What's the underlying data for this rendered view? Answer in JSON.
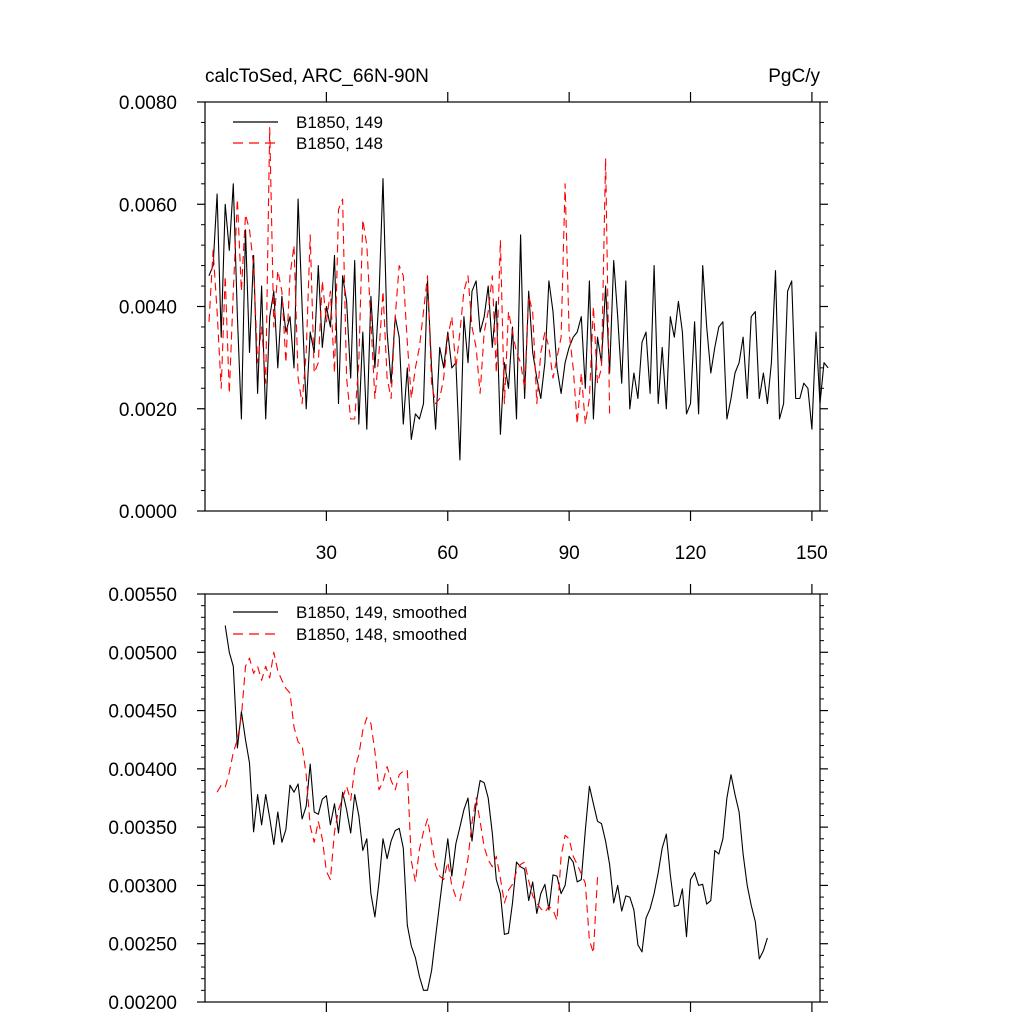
{
  "chart_data": [
    {
      "type": "line",
      "title": "calcToSed, ARC_66N-90N",
      "units": "PgC/y",
      "xlim": [
        0,
        152
      ],
      "ylim": [
        0.0,
        0.008
      ],
      "yticks": [
        "0.0000",
        "0.0020",
        "0.0040",
        "0.0060",
        "0.0080"
      ],
      "ytick_values": [
        0.0,
        0.002,
        0.004,
        0.006,
        0.008
      ],
      "xticks": [
        "30",
        "60",
        "90",
        "120",
        "150"
      ],
      "xtick_values": [
        30,
        60,
        90,
        120,
        150
      ],
      "legend_position": "top-left",
      "series": [
        {
          "name": "B1850, 149",
          "color": "#000000",
          "style": "solid",
          "x_start": 1,
          "values": [
            0.0046,
            0.0048,
            0.0062,
            0.0034,
            0.006,
            0.0051,
            0.0064,
            0.0038,
            0.0018,
            0.0055,
            0.0031,
            0.005,
            0.0023,
            0.0044,
            0.0018,
            0.0038,
            0.0043,
            0.0028,
            0.0042,
            0.0035,
            0.0038,
            0.0028,
            0.0061,
            0.004,
            0.002,
            0.0035,
            0.0031,
            0.0048,
            0.0032,
            0.004,
            0.0036,
            0.005,
            0.0021,
            0.0046,
            0.0041,
            0.0026,
            0.0049,
            0.0017,
            0.0035,
            0.0016,
            0.0042,
            0.0028,
            0.0042,
            0.0065,
            0.0035,
            0.0025,
            0.0038,
            0.0034,
            0.0017,
            0.0028,
            0.0014,
            0.0019,
            0.0018,
            0.0021,
            0.0045,
            0.0028,
            0.0016,
            0.0032,
            0.0028,
            0.0035,
            0.0028,
            0.0029,
            0.001,
            0.0038,
            0.0029,
            0.0043,
            0.0045,
            0.0035,
            0.0038,
            0.0044,
            0.0032,
            0.0041,
            0.0015,
            0.0029,
            0.0024,
            0.0036,
            0.0018,
            0.0054,
            0.0022,
            0.0043,
            0.0031,
            0.0026,
            0.0022,
            0.0029,
            0.0045,
            0.0039,
            0.0028,
            0.0023,
            0.0029,
            0.0032,
            0.0034,
            0.0035,
            0.0038,
            0.0024,
            0.0045,
            0.0018,
            0.0034,
            0.0029,
            0.0044,
            0.0027,
            0.0049,
            0.0038,
            0.0025,
            0.0045,
            0.002,
            0.0027,
            0.0022,
            0.0033,
            0.0035,
            0.0023,
            0.0048,
            0.0021,
            0.0032,
            0.002,
            0.0038,
            0.0034,
            0.0041,
            0.0035,
            0.0019,
            0.0021,
            0.0037,
            0.0019,
            0.0048,
            0.0036,
            0.0027,
            0.0032,
            0.0036,
            0.0037,
            0.0018,
            0.0022,
            0.0027,
            0.0029,
            0.0034,
            0.0022,
            0.0038,
            0.0039,
            0.0022,
            0.0027,
            0.0021,
            0.0029,
            0.0047,
            0.0018,
            0.0021,
            0.0043,
            0.0045,
            0.0022,
            0.0022,
            0.0025,
            0.0024,
            0.0016,
            0.0035,
            0.0021,
            0.0029,
            0.0028
          ]
        },
        {
          "name": "B1850, 148",
          "color": "#ff0000",
          "style": "dashed",
          "x_start": 1,
          "values": [
            0.0037,
            0.0051,
            0.0039,
            0.0024,
            0.0046,
            0.0023,
            0.0043,
            0.0061,
            0.0043,
            0.0058,
            0.0055,
            0.0048,
            0.0029,
            0.0036,
            0.0025,
            0.0075,
            0.0036,
            0.0047,
            0.0043,
            0.0029,
            0.0046,
            0.0052,
            0.0026,
            0.0021,
            0.0031,
            0.0054,
            0.0027,
            0.0029,
            0.0045,
            0.0037,
            0.0043,
            0.0027,
            0.0059,
            0.0061,
            0.0026,
            0.0018,
            0.0018,
            0.0029,
            0.0057,
            0.0052,
            0.0037,
            0.0022,
            0.0031,
            0.0043,
            0.0026,
            0.0022,
            0.0038,
            0.0048,
            0.0046,
            0.0033,
            0.0022,
            0.0028,
            0.0032,
            0.0039,
            0.0046,
            0.0025,
            0.0021,
            0.0022,
            0.0026,
            0.0034,
            0.0038,
            0.0028,
            0.0035,
            0.0043,
            0.0046,
            0.0036,
            0.0032,
            0.0023,
            0.0035,
            0.0039,
            0.0046,
            0.0027,
            0.0053,
            0.0021,
            0.0039,
            0.0035,
            0.0031,
            0.0029,
            0.0024,
            0.0042,
            0.0039,
            0.0021,
            0.0031,
            0.0035,
            0.0032,
            0.0026,
            0.003,
            0.0034,
            0.0064,
            0.0035,
            0.0028,
            0.0017,
            0.0027,
            0.0017,
            0.0022,
            0.004,
            0.0025,
            0.0028,
            0.0069,
            0.0019
          ]
        }
      ]
    },
    {
      "type": "line",
      "title": "",
      "xlim": [
        0,
        152
      ],
      "ylim": [
        0.002,
        0.0055
      ],
      "yticks": [
        "0.00200",
        "0.00250",
        "0.00300",
        "0.00350",
        "0.00400",
        "0.00450",
        "0.00500",
        "0.00550"
      ],
      "ytick_values": [
        0.002,
        0.0025,
        0.003,
        0.0035,
        0.004,
        0.0045,
        0.005,
        0.0055
      ],
      "xtick_values": [
        30,
        60,
        90,
        120,
        150
      ],
      "legend_position": "top-left",
      "series": [
        {
          "name": "B1850, 149, smoothed",
          "color": "#000000",
          "style": "solid",
          "x_start": 5,
          "values": [
            0.00523,
            0.005,
            0.00488,
            0.00418,
            0.00449,
            0.00425,
            0.00405,
            0.00346,
            0.00378,
            0.00352,
            0.00378,
            0.00358,
            0.00335,
            0.00363,
            0.00337,
            0.00348,
            0.00386,
            0.0038,
            0.00387,
            0.00357,
            0.00368,
            0.00404,
            0.00363,
            0.00361,
            0.00374,
            0.00377,
            0.00352,
            0.0037,
            0.00345,
            0.0038,
            0.00365,
            0.00345,
            0.00378,
            0.0036,
            0.0033,
            0.0034,
            0.00293,
            0.00273,
            0.00303,
            0.0034,
            0.00323,
            0.00338,
            0.00347,
            0.00349,
            0.00332,
            0.00266,
            0.00248,
            0.00238,
            0.00222,
            0.0021,
            0.0021,
            0.00227,
            0.00256,
            0.00285,
            0.00313,
            0.0034,
            0.00308,
            0.00336,
            0.0035,
            0.00365,
            0.00375,
            0.00338,
            0.0037,
            0.0039,
            0.00388,
            0.00375,
            0.00345,
            0.00305,
            0.00293,
            0.00258,
            0.00259,
            0.00285,
            0.0032,
            0.00316,
            0.00314,
            0.00287,
            0.00303,
            0.00276,
            0.00293,
            0.00301,
            0.00279,
            0.00309,
            0.00308,
            0.00293,
            0.003,
            0.00325,
            0.0032,
            0.00303,
            0.00305,
            0.00347,
            0.00385,
            0.0037,
            0.00355,
            0.00353,
            0.00338,
            0.00318,
            0.00285,
            0.003,
            0.00278,
            0.00291,
            0.0029,
            0.00279,
            0.00249,
            0.00243,
            0.00272,
            0.0028,
            0.00293,
            0.00311,
            0.00332,
            0.00344,
            0.00309,
            0.00282,
            0.00283,
            0.00297,
            0.00256,
            0.00305,
            0.00311,
            0.003,
            0.00301,
            0.00284,
            0.00287,
            0.0033,
            0.00327,
            0.0034,
            0.00375,
            0.00395,
            0.00378,
            0.00363,
            0.00327,
            0.003,
            0.00283,
            0.00269,
            0.00237,
            0.00244,
            0.00255
          ]
        },
        {
          "name": "B1850, 148, smoothed",
          "color": "#ff0000",
          "style": "dashed",
          "x_start": 3,
          "values": [
            0.0038,
            0.00386,
            0.00384,
            0.00397,
            0.00414,
            0.00425,
            0.00445,
            0.00488,
            0.00495,
            0.00482,
            0.00488,
            0.00476,
            0.00488,
            0.00478,
            0.005,
            0.00484,
            0.00476,
            0.00469,
            0.00465,
            0.00436,
            0.00423,
            0.0042,
            0.00395,
            0.00351,
            0.00337,
            0.00355,
            0.0034,
            0.00312,
            0.00305,
            0.00346,
            0.00365,
            0.00375,
            0.00385,
            0.00373,
            0.004,
            0.00412,
            0.00433,
            0.00444,
            0.00439,
            0.00415,
            0.00382,
            0.00389,
            0.00402,
            0.0039,
            0.00382,
            0.00395,
            0.00398,
            0.00399,
            0.00321,
            0.00303,
            0.00331,
            0.00346,
            0.00357,
            0.00337,
            0.00317,
            0.00308,
            0.00305,
            0.0032,
            0.003,
            0.0029,
            0.00287,
            0.00303,
            0.00323,
            0.00354,
            0.00375,
            0.00355,
            0.00333,
            0.00322,
            0.00316,
            0.00325,
            0.00306,
            0.00285,
            0.00296,
            0.00301,
            0.00312,
            0.00318,
            0.0032,
            0.00304,
            0.00291,
            0.00285,
            0.0028,
            0.00277,
            0.00282,
            0.00279,
            0.0027,
            0.00325,
            0.00343,
            0.0034,
            0.00325,
            0.00318,
            0.0031,
            0.00302,
            0.00253,
            0.00242,
            0.00307,
            0.00309
          ]
        }
      ]
    }
  ]
}
